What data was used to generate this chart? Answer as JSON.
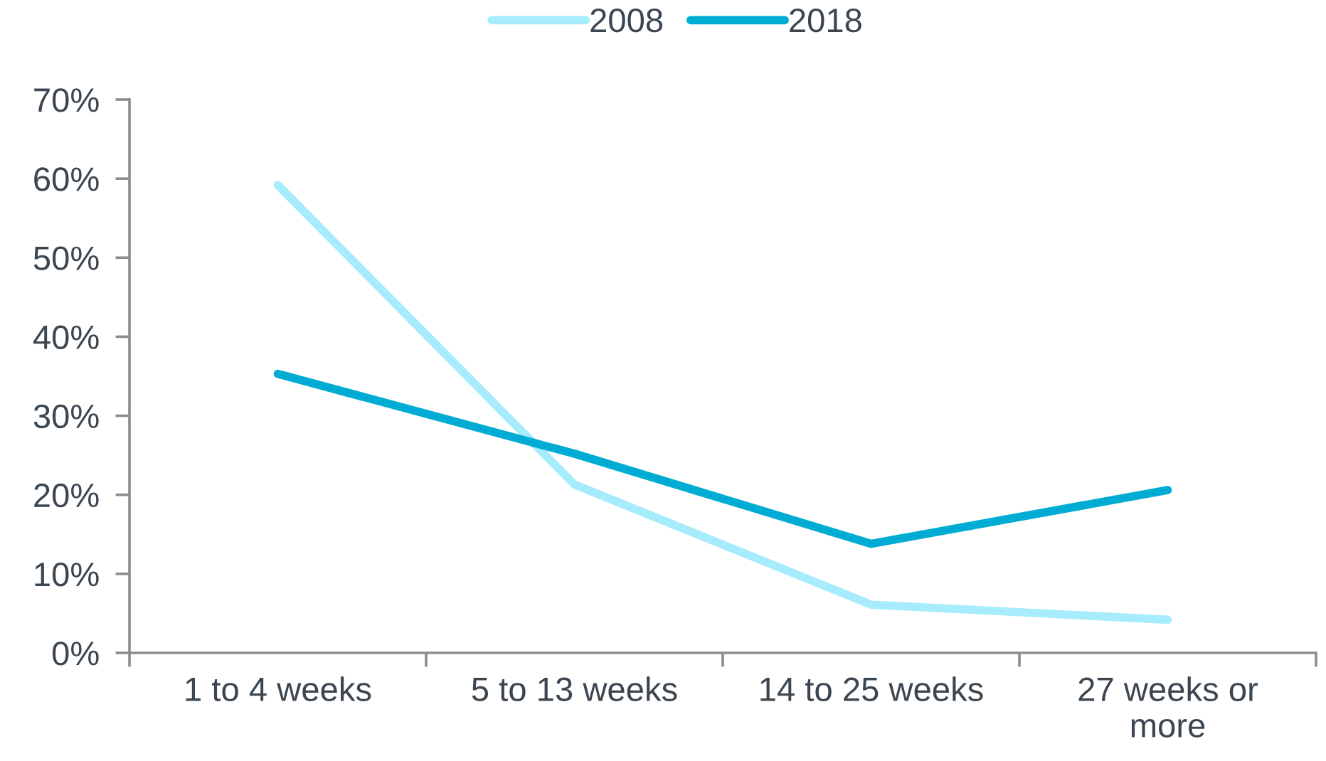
{
  "chart_data": {
    "type": "line",
    "categories": [
      "1 to 4 weeks",
      "5 to 13 weeks",
      "14 to 25 weeks",
      "27 weeks or more"
    ],
    "series": [
      {
        "name": "2008",
        "color": "#a6ecfc",
        "values": [
          59.2,
          21.3,
          6.1,
          4.2
        ]
      },
      {
        "name": "2018",
        "color": "#00acd3",
        "values": [
          35.3,
          25.2,
          13.8,
          20.6
        ]
      }
    ],
    "ylim": [
      0,
      70
    ],
    "yticks": [
      {
        "value": 0,
        "label": "0%"
      },
      {
        "value": 10,
        "label": "10%"
      },
      {
        "value": 20,
        "label": "20%"
      },
      {
        "value": 30,
        "label": "30%"
      },
      {
        "value": 40,
        "label": "40%"
      },
      {
        "value": 50,
        "label": "50%"
      },
      {
        "value": 60,
        "label": "60%"
      },
      {
        "value": 70,
        "label": "70%"
      }
    ],
    "grid": false,
    "legend": "top",
    "marker": "none",
    "line_style": "solid"
  }
}
